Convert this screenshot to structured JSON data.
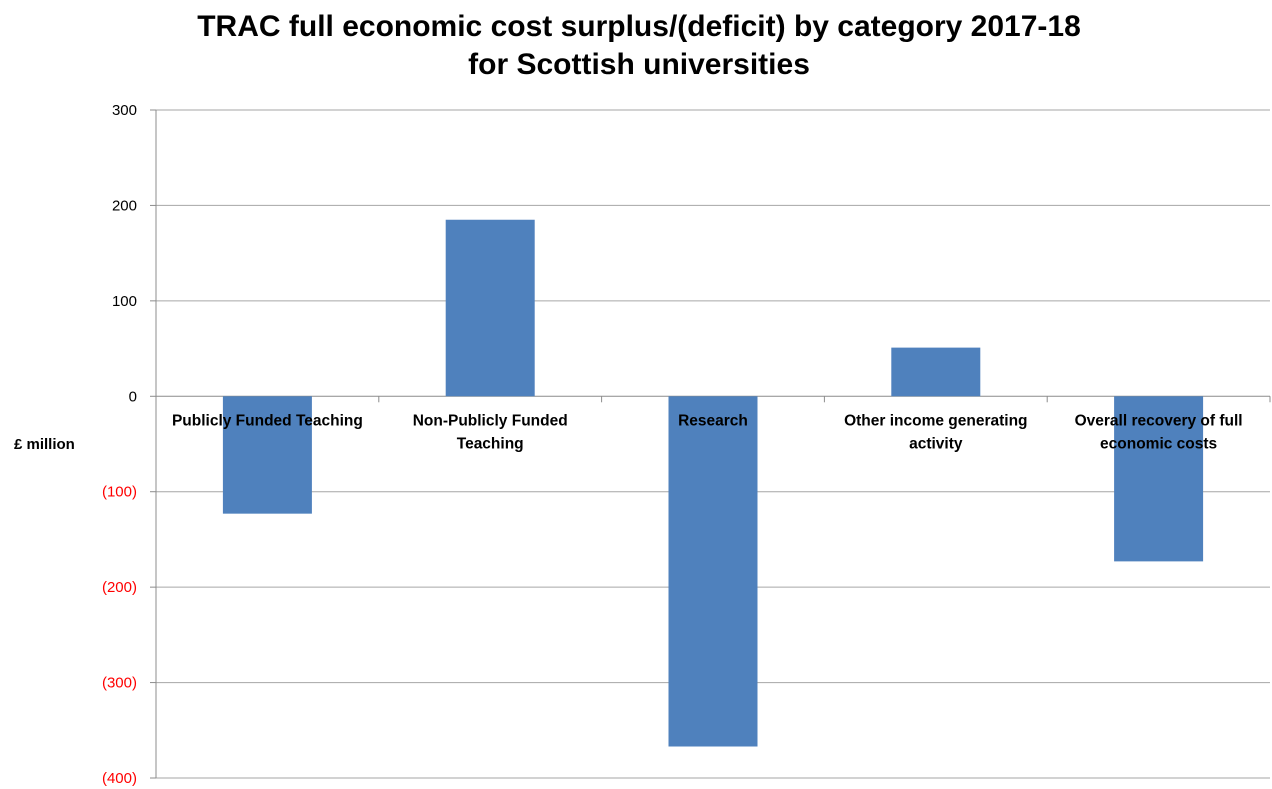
{
  "chart_data": {
    "type": "bar",
    "title_line1": "TRAC full economic cost surplus/(deficit) by category 2017-18",
    "title_line2": "for Scottish universities",
    "ylabel": "£ million",
    "xlabel": "",
    "categories": [
      [
        "Publicly Funded Teaching"
      ],
      [
        "Non-Publicly Funded",
        "Teaching"
      ],
      [
        "Research"
      ],
      [
        "Other income generating",
        "activity"
      ],
      [
        "Overall recovery of full",
        "economic costs"
      ]
    ],
    "values": [
      -123,
      185,
      -367,
      51,
      -173
    ],
    "ylim": [
      -400,
      300
    ],
    "yticks": [
      300,
      200,
      100,
      0,
      -100,
      -200,
      -300,
      -400
    ],
    "ytick_labels": [
      "300",
      "200",
      "100",
      "0",
      "(100)",
      "(200)",
      "(300)",
      "(400)"
    ],
    "grid": true,
    "bar_color": "#4f81bd",
    "negative_tick_color": "#ff0000"
  }
}
